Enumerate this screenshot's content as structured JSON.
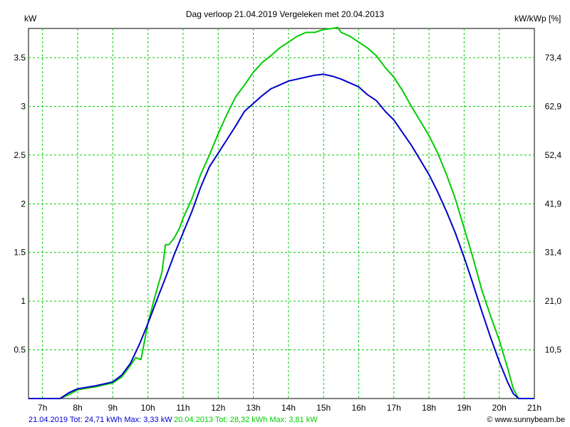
{
  "chart_data": {
    "type": "line",
    "title": "Dag  verloop 21.04.2019   Vergeleken met 20.04.2013",
    "ylabel_left": "kW",
    "ylabel_right": "kW/kWp [%]",
    "x_ticks": [
      "7h",
      "8h",
      "9h",
      "10h",
      "11h",
      "12h",
      "13h",
      "14h",
      "15h",
      "16h",
      "17h",
      "18h",
      "19h",
      "20h",
      "21h"
    ],
    "y_ticks": [
      "0.5",
      "1",
      "1.5",
      "2",
      "2.5",
      "3",
      "3.5"
    ],
    "y2_ticks": [
      "10,5",
      "21,0",
      "31,4",
      "41,9",
      "52,4",
      "62,9",
      "73,4"
    ],
    "xlim": [
      6.6,
      21.0
    ],
    "ylim": [
      0,
      3.8
    ],
    "grid": true,
    "series": [
      {
        "name": "21.04.2019",
        "color": "#0000cc",
        "x": [
          6.6,
          7.5,
          7.75,
          8.0,
          8.5,
          8.75,
          9.0,
          9.25,
          9.5,
          9.75,
          10.0,
          10.25,
          10.5,
          10.75,
          11.0,
          11.25,
          11.5,
          11.75,
          12.0,
          12.25,
          12.5,
          12.75,
          13.0,
          13.25,
          13.5,
          13.75,
          14.0,
          14.25,
          14.5,
          14.75,
          15.0,
          15.25,
          15.5,
          15.75,
          16.0,
          16.25,
          16.5,
          16.75,
          17.0,
          17.25,
          17.5,
          17.75,
          18.0,
          18.25,
          18.5,
          18.75,
          19.0,
          19.25,
          19.5,
          19.75,
          20.0,
          20.25,
          20.4,
          20.55,
          21.0
        ],
        "values": [
          0,
          0,
          0.06,
          0.1,
          0.13,
          0.15,
          0.17,
          0.24,
          0.36,
          0.55,
          0.77,
          1.01,
          1.24,
          1.48,
          1.7,
          1.92,
          2.17,
          2.38,
          2.52,
          2.66,
          2.8,
          2.95,
          3.03,
          3.11,
          3.18,
          3.22,
          3.26,
          3.28,
          3.3,
          3.32,
          3.33,
          3.31,
          3.28,
          3.24,
          3.2,
          3.12,
          3.06,
          2.95,
          2.86,
          2.73,
          2.6,
          2.45,
          2.3,
          2.12,
          1.92,
          1.7,
          1.45,
          1.18,
          0.9,
          0.63,
          0.38,
          0.16,
          0.05,
          0.0,
          0
        ]
      },
      {
        "name": "20.04.2013",
        "color": "#00cc00",
        "x": [
          6.6,
          7.5,
          7.75,
          8.0,
          8.5,
          8.75,
          9.0,
          9.25,
          9.5,
          9.65,
          9.8,
          10.0,
          10.2,
          10.4,
          10.5,
          10.6,
          10.75,
          10.9,
          11.0,
          11.25,
          11.5,
          11.75,
          12.0,
          12.25,
          12.5,
          12.75,
          13.0,
          13.25,
          13.5,
          13.75,
          14.0,
          14.25,
          14.5,
          14.75,
          15.0,
          15.25,
          15.4,
          15.5,
          15.75,
          16.0,
          16.25,
          16.5,
          16.75,
          17.0,
          17.25,
          17.5,
          17.75,
          18.0,
          18.25,
          18.5,
          18.75,
          19.0,
          19.25,
          19.5,
          19.75,
          20.0,
          20.25,
          20.4,
          20.55,
          21.0
        ],
        "values": [
          0,
          0,
          0.04,
          0.09,
          0.12,
          0.14,
          0.16,
          0.22,
          0.34,
          0.42,
          0.4,
          0.77,
          1.05,
          1.3,
          1.58,
          1.58,
          1.65,
          1.75,
          1.85,
          2.05,
          2.3,
          2.5,
          2.72,
          2.92,
          3.1,
          3.22,
          3.35,
          3.45,
          3.52,
          3.6,
          3.66,
          3.72,
          3.76,
          3.76,
          3.79,
          3.8,
          3.81,
          3.76,
          3.72,
          3.66,
          3.6,
          3.52,
          3.4,
          3.3,
          3.16,
          3.0,
          2.85,
          2.7,
          2.52,
          2.3,
          2.05,
          1.75,
          1.45,
          1.12,
          0.85,
          0.6,
          0.3,
          0.1,
          0.0,
          0
        ]
      }
    ]
  },
  "footer": {
    "blue_text": "21.04.2019 Tot: 24,71 kWh Max: 3,33 kW",
    "green_text": "20.04.2013 Tot: 28,32 kWh Max: 3,81 kW",
    "credit": "© www.sunnybeam.be",
    "colors": {
      "blue": "#0000cc",
      "green": "#00cc00",
      "grid": "#00cc00"
    }
  }
}
